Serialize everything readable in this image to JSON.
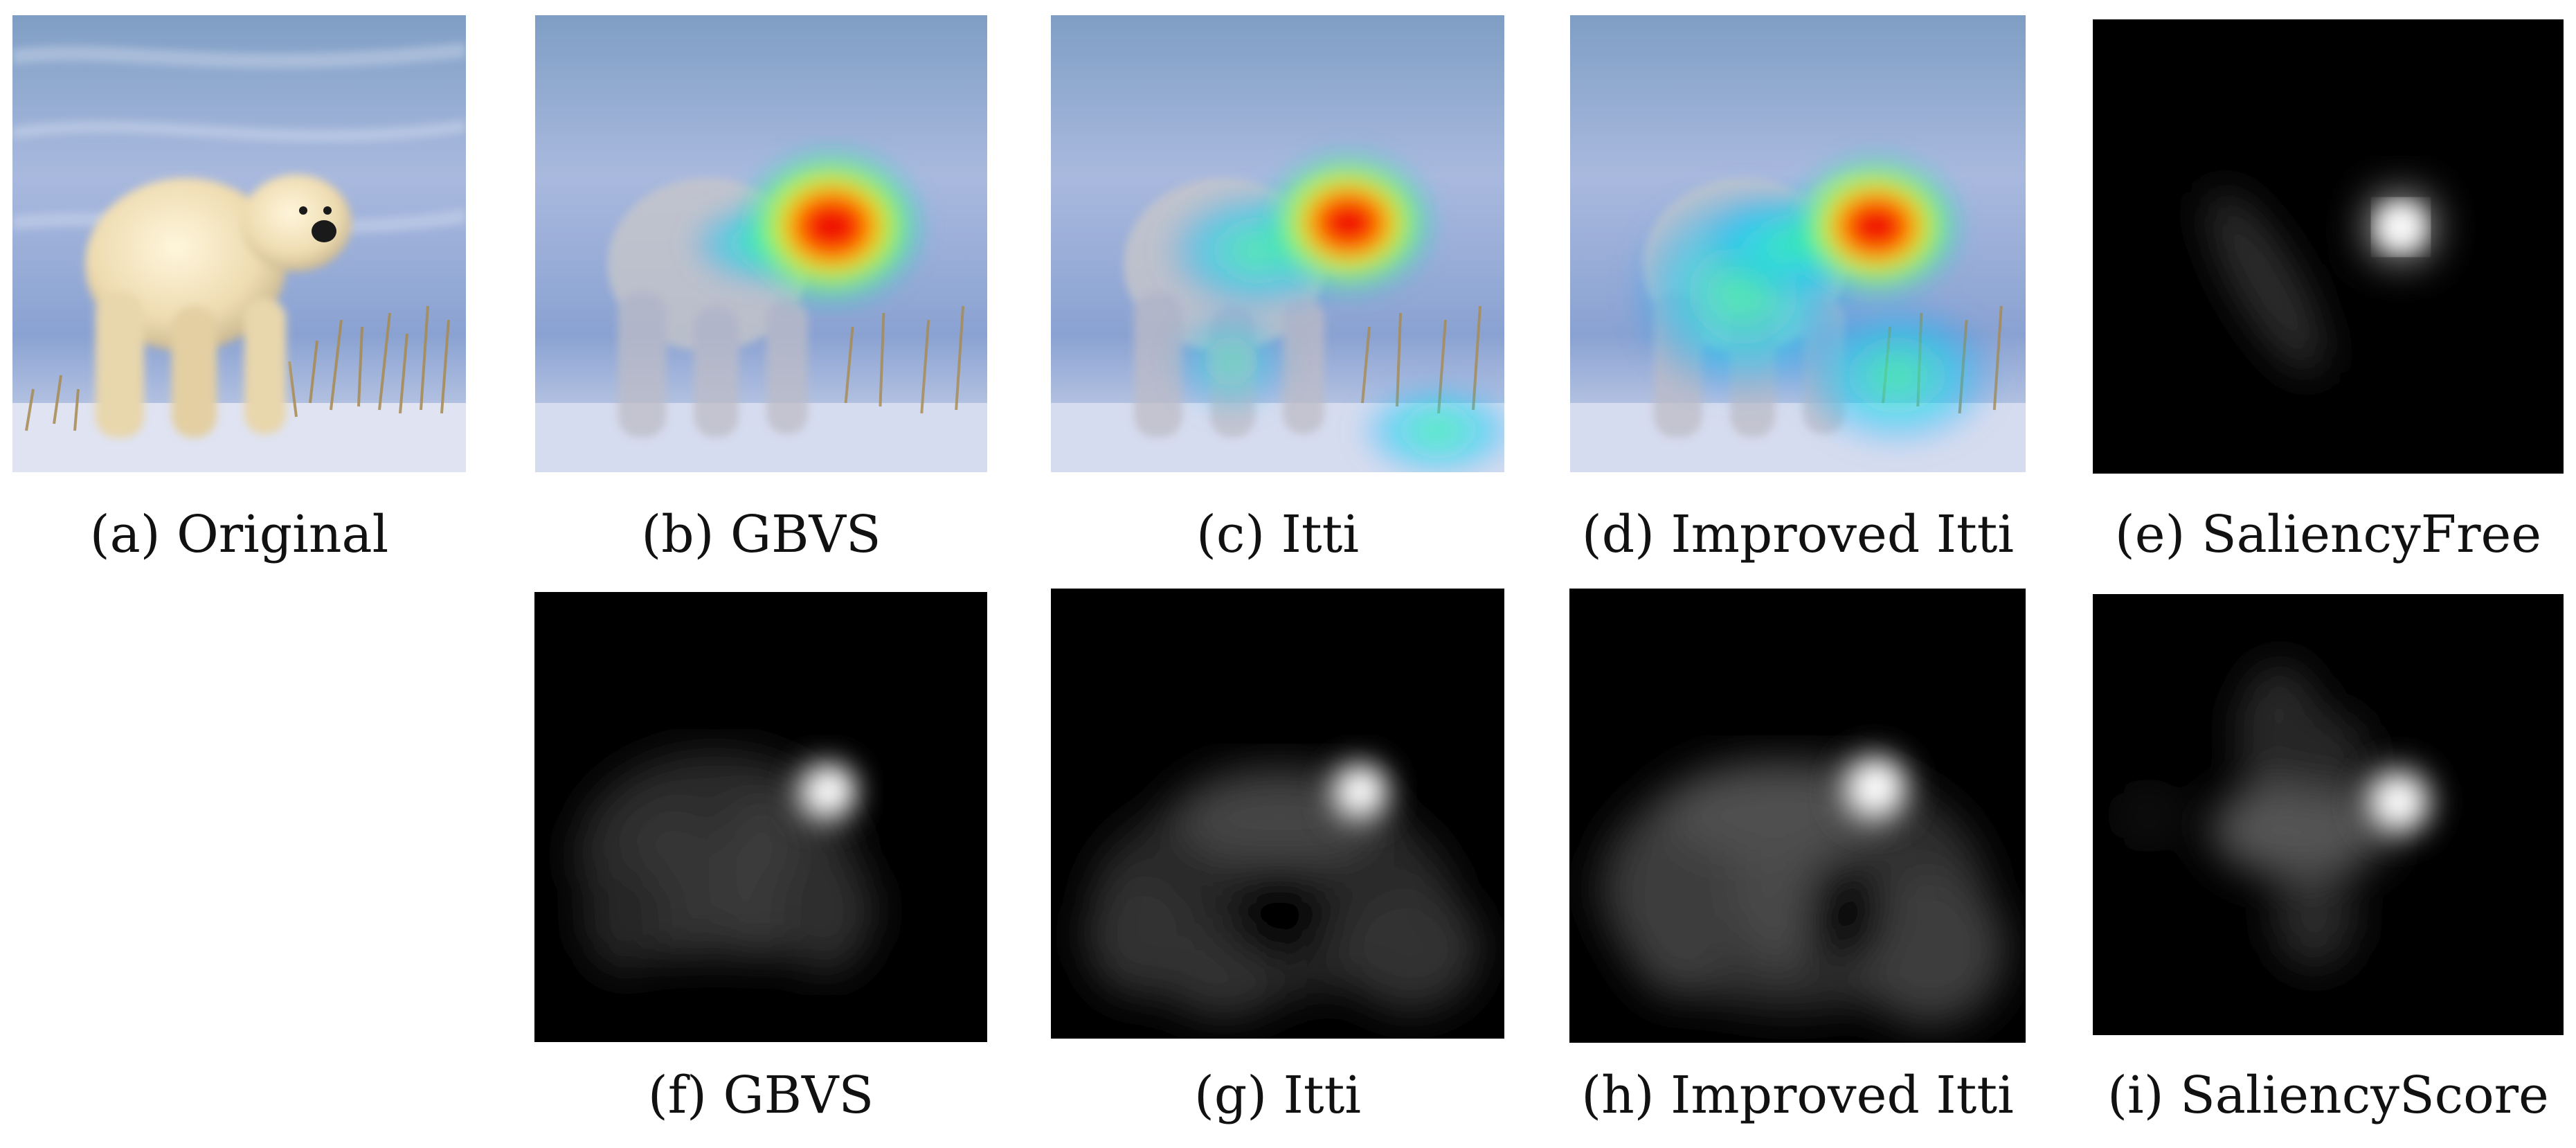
{
  "captions": {
    "a": "(a) Original",
    "b": "(b) GBVS",
    "c": "(c) Itti",
    "d": "(d) Improved Itti",
    "e": "(e) SaliencyFree",
    "f": "(f) GBVS",
    "g": "(g) Itti",
    "h": "(h) Improved Itti",
    "i": "(i) SaliencyScore"
  },
  "colors": {
    "sky_top": "#7fa2c8",
    "snow": "#9fb4dc",
    "ground": "#c9d2ea",
    "bear": "#f0e4c4",
    "grass": "#b89a60",
    "saliency_bg": "#000000",
    "hot": "#ff0000",
    "warm": "#ffea00",
    "cool": "#00d2ff"
  }
}
